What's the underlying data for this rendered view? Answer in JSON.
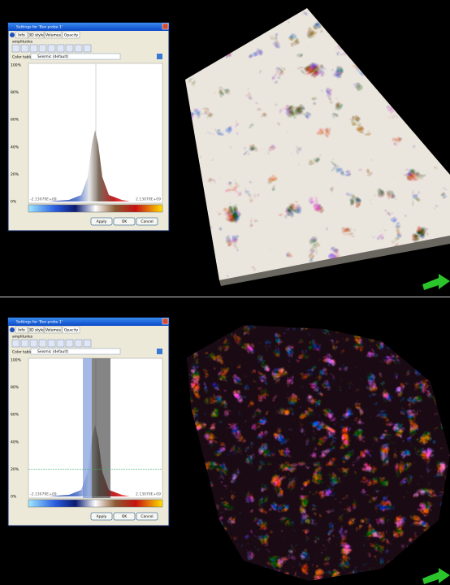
{
  "panels": [
    {
      "dialog": {
        "title": "Settings for 'Box probe 1'",
        "tabs": [
          "Info",
          "3D style",
          "Volumes",
          "Opacity"
        ],
        "section": "amplitudes",
        "color_table_label": "Color table",
        "color_table_value": "Seismic (default)",
        "y_labels": [
          "100%",
          "80%",
          "60%",
          "40%",
          "20%",
          "0%"
        ],
        "min_label": "-2.13079E+09",
        "max_label": "2.13079E+09",
        "buttons": [
          "Apply",
          "OK",
          "Cancel"
        ]
      }
    },
    {
      "dialog": {
        "title": "Settings for 'Box probe 1'",
        "tabs": [
          "Info",
          "3D style",
          "Volumes",
          "Opacity"
        ],
        "section": "amplitudes",
        "color_table_label": "Color table",
        "color_table_value": "Seismic (default)",
        "y_labels": [
          "100%",
          "80%",
          "60%",
          "40%",
          "20%",
          "0%"
        ],
        "min_label": "-2.13079E+09",
        "max_label": "2.13079E+09",
        "buttons": [
          "Apply",
          "OK",
          "Cancel"
        ]
      }
    }
  ]
}
